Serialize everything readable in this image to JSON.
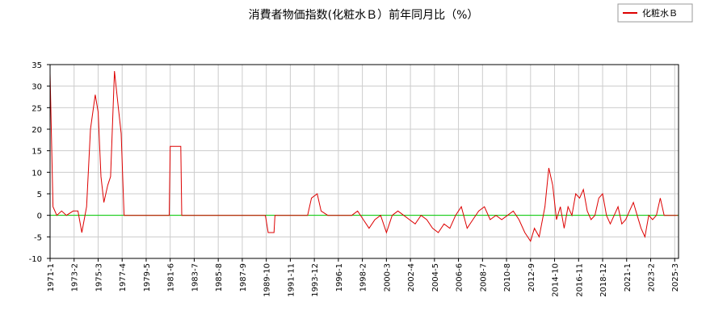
{
  "chart_data": {
    "type": "line",
    "title": "消費者物価指数(化粧水Ｂ）前年同月比（%）",
    "xlabel": "",
    "ylabel": "",
    "ylim": [
      -10,
      35
    ],
    "y_ticks": [
      "35",
      "30",
      "25",
      "20",
      "15",
      "10",
      "5",
      "0",
      "-5",
      "-10"
    ],
    "x_tick_labels": [
      "1971-1",
      "1973-2",
      "1975-3",
      "1977-4",
      "1979-5",
      "1981-6",
      "1983-7",
      "1985-8",
      "1987-9",
      "1989-10",
      "1991-11",
      "1993-12",
      "1996-1",
      "1998-2",
      "2000-3",
      "2002-4",
      "2004-5",
      "2006-6",
      "2008-7",
      "2010-8",
      "2012-9",
      "2014-10",
      "2016-11",
      "2018-12",
      "2021-1",
      "2023-2",
      "2025-3"
    ],
    "grid": true,
    "legend_position": "top-right",
    "colors": {
      "series": "#dd0000",
      "zero_line": "#00cc00",
      "grid": "#cccccc"
    },
    "series": [
      {
        "name": "化粧水Ｂ",
        "x": [
          "1971-01",
          "1971-04",
          "1971-08",
          "1972-01",
          "1972-06",
          "1973-01",
          "1973-06",
          "1973-10",
          "1974-03",
          "1974-07",
          "1974-12",
          "1975-03",
          "1975-06",
          "1975-09",
          "1976-01",
          "1976-04",
          "1976-08",
          "1976-12",
          "1977-03",
          "1977-06",
          "1977-10",
          "1978-02",
          "1978-03",
          "1979-01",
          "1981-01",
          "1981-05",
          "1981-06",
          "1982-05",
          "1982-06",
          "1984-01",
          "1986-01",
          "1988-01",
          "1989-09",
          "1989-12",
          "1990-06",
          "1990-07",
          "1991-06",
          "1991-07",
          "1993-05",
          "1993-09",
          "1994-03",
          "1994-07",
          "1995-02",
          "1995-09",
          "1996-06",
          "1997-03",
          "1997-09",
          "1998-03",
          "1998-09",
          "1999-03",
          "1999-09",
          "2000-03",
          "2000-09",
          "2001-03",
          "2001-09",
          "2002-03",
          "2002-09",
          "2003-03",
          "2003-09",
          "2004-03",
          "2004-09",
          "2005-03",
          "2005-09",
          "2006-03",
          "2006-09",
          "2007-03",
          "2007-09",
          "2008-03",
          "2008-09",
          "2009-03",
          "2009-09",
          "2010-03",
          "2010-09",
          "2011-03",
          "2011-09",
          "2012-03",
          "2012-09",
          "2013-01",
          "2013-06",
          "2013-12",
          "2014-04",
          "2014-08",
          "2014-12",
          "2015-04",
          "2015-08",
          "2015-12",
          "2016-04",
          "2016-08",
          "2016-12",
          "2017-04",
          "2017-08",
          "2017-12",
          "2018-04",
          "2018-08",
          "2018-12",
          "2019-04",
          "2019-08",
          "2019-12",
          "2020-04",
          "2020-08",
          "2020-12",
          "2021-04",
          "2021-08",
          "2021-12",
          "2022-04",
          "2022-08",
          "2022-12",
          "2023-04",
          "2023-08",
          "2023-12",
          "2024-04",
          "2024-08",
          "2024-12",
          "2025-03",
          "2025-06"
        ],
        "values": [
          33,
          2,
          0,
          1,
          0,
          1,
          1,
          -4,
          2,
          20,
          28,
          24,
          9,
          3,
          7,
          9,
          33.5,
          25,
          19,
          0,
          0,
          0,
          0,
          0,
          0,
          0,
          16,
          16,
          0,
          0,
          0,
          0,
          0,
          -4,
          -4,
          0,
          0,
          0,
          0,
          4,
          5,
          1,
          0,
          0,
          0,
          0,
          1,
          -1,
          -3,
          -1,
          0,
          -4,
          0,
          1,
          0,
          -1,
          -2,
          0,
          -1,
          -3,
          -4,
          -2,
          -3,
          0,
          2,
          -3,
          -1,
          1,
          2,
          -1,
          0,
          -1,
          0,
          1,
          -1,
          -4,
          -6,
          -3,
          -5,
          2,
          11,
          7,
          -1,
          2,
          -3,
          2,
          0,
          5,
          4,
          6,
          1,
          -1,
          0,
          4,
          5,
          0,
          -2,
          0,
          2,
          -2,
          -1,
          1,
          3,
          0,
          -3,
          -5,
          0,
          -1,
          0,
          4,
          0,
          0,
          0,
          0,
          0
        ]
      }
    ]
  }
}
